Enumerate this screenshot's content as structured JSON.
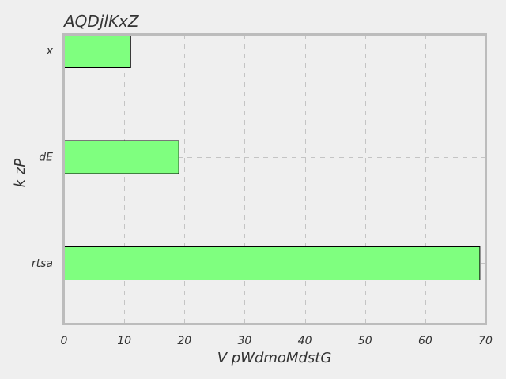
{
  "chart_data": {
    "type": "bar",
    "orientation": "horizontal",
    "title": "AQDjlKxZ",
    "xlabel": "V pWdmoMdstG",
    "ylabel": "k zP",
    "categories": [
      "x",
      "dE",
      "rtsa"
    ],
    "values": [
      11,
      19,
      69
    ],
    "xlim": [
      0,
      70
    ],
    "xticks": [
      0,
      10,
      20,
      30,
      40,
      50,
      60,
      70
    ],
    "grid": true,
    "bar_color": "#7fff7f",
    "bar_edge_color": "#000000",
    "background_color": "#efefef",
    "frame_color": "#bcbcbc",
    "grid_color": "#c4c4c4"
  }
}
